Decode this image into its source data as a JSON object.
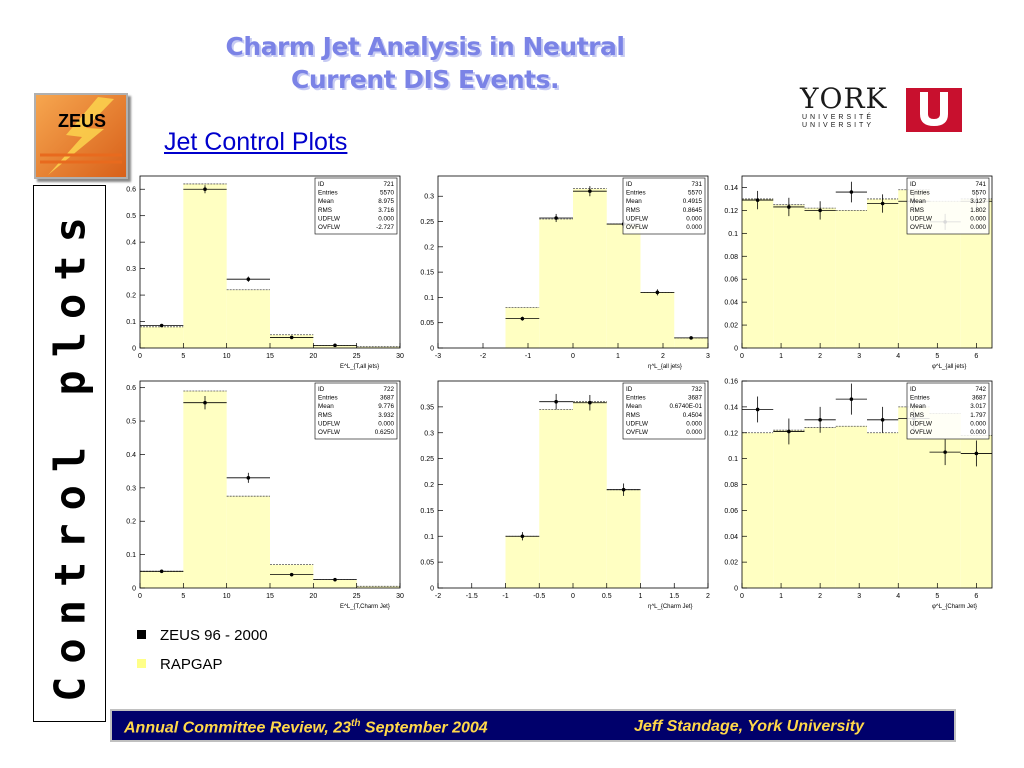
{
  "title_line1": "Charm Jet Analysis in Neutral",
  "title_line2": "Current DIS Events.",
  "subtitle": "Jet Control Plots",
  "logo_zeus": "ZEUS",
  "logo_york": {
    "name": "YORK",
    "line1": "UNIVERSITÉ",
    "line2": "UNIVERSITY"
  },
  "sidebar_text": "Control plots",
  "legend": [
    {
      "label": "ZEUS 96 - 2000",
      "color": "#000000"
    },
    {
      "label": "RAPGAP",
      "color": "#ffff88"
    }
  ],
  "footer": {
    "left_pre": "Annual Committee Review, 23",
    "left_sup": "th",
    "left_post": " September 2004",
    "right": "Jeff Standage, York University"
  },
  "colors": {
    "mc_fill": "#ffffc2",
    "mc_line": "#e8e890",
    "title": "#7b83e6",
    "subtitle": "#0000cc",
    "footer_bg": "#00006b",
    "footer_text": "#ffd84a"
  },
  "chart_data": [
    {
      "type": "bar",
      "xlabel": "E^L_{T,all jets}",
      "xlim": [
        0,
        30
      ],
      "ylim": [
        0,
        0.65
      ],
      "xticks": [
        0,
        5,
        10,
        15,
        20,
        25,
        30
      ],
      "yticks": [
        0,
        0.1,
        0.2,
        0.3,
        0.4,
        0.5,
        0.6
      ],
      "stats": [
        [
          "ID",
          "721"
        ],
        [
          "Entries",
          "5570"
        ],
        [
          "Mean",
          "8.975"
        ],
        [
          "RMS",
          "3.716"
        ],
        [
          "UDFLW",
          "0.000"
        ],
        [
          "OVFLW",
          "-2.727"
        ]
      ],
      "bins": [
        0,
        5,
        10,
        15,
        20,
        25,
        30
      ],
      "mc": [
        0.08,
        0.62,
        0.22,
        0.05,
        0.01,
        0.005
      ],
      "data_x": [
        2.5,
        7.5,
        12.5,
        17.5,
        22.5
      ],
      "data_y": [
        0.085,
        0.6,
        0.26,
        0.04,
        0.01
      ],
      "data_err": [
        0.005,
        0.015,
        0.01,
        0.004,
        0.002
      ]
    },
    {
      "type": "bar",
      "xlabel": "η^L_{all jets}",
      "xlim": [
        -3,
        3
      ],
      "ylim": [
        0,
        0.34
      ],
      "xticks": [
        -3,
        -2,
        -1,
        0,
        1,
        2,
        3
      ],
      "yticks": [
        0,
        0.05,
        0.1,
        0.15,
        0.2,
        0.25,
        0.3
      ],
      "stats": [
        [
          "ID",
          "731"
        ],
        [
          "Entries",
          "5570"
        ],
        [
          "Mean",
          "0.4915"
        ],
        [
          "RMS",
          "0.8645"
        ],
        [
          "UDFLW",
          "0.000"
        ],
        [
          "OVFLW",
          "0.000"
        ]
      ],
      "bins": [
        -1.5,
        -0.75,
        0,
        0.75,
        1.5,
        2.25,
        3
      ],
      "mc": [
        0.08,
        0.255,
        0.315,
        0.245,
        0.11,
        0.02
      ],
      "data_x": [
        -1.125,
        -0.375,
        0.375,
        1.125,
        1.875,
        2.625
      ],
      "data_y": [
        0.058,
        0.257,
        0.31,
        0.245,
        0.11,
        0.02
      ],
      "data_err": [
        0.004,
        0.008,
        0.01,
        0.008,
        0.006,
        0.003
      ]
    },
    {
      "type": "bar",
      "xlabel": "φ^L_{all jets}",
      "xlim": [
        0,
        6.4
      ],
      "ylim": [
        0,
        0.15
      ],
      "xticks": [
        0,
        1,
        2,
        3,
        4,
        5,
        6
      ],
      "yticks": [
        0,
        0.02,
        0.04,
        0.06,
        0.08,
        0.1,
        0.12,
        0.14
      ],
      "stats": [
        [
          "ID",
          "741"
        ],
        [
          "Entries",
          "5570"
        ],
        [
          "Mean",
          "3.127"
        ],
        [
          "RMS",
          "1.802"
        ],
        [
          "UDFLW",
          "0.000"
        ],
        [
          "OVFLW",
          "0.000"
        ]
      ],
      "bins": [
        0,
        0.8,
        1.6,
        2.4,
        3.2,
        4.0,
        4.8,
        5.6,
        6.4
      ],
      "mc": [
        0.13,
        0.125,
        0.122,
        0.12,
        0.13,
        0.138,
        0.128,
        0.13
      ],
      "data_x": [
        0.4,
        1.2,
        2.0,
        2.8,
        3.6,
        4.4,
        5.2,
        6.0
      ],
      "data_y": [
        0.129,
        0.123,
        0.12,
        0.136,
        0.126,
        0.128,
        0.11,
        0.128
      ],
      "data_err": [
        0.008,
        0.008,
        0.008,
        0.009,
        0.008,
        0.008,
        0.007,
        0.008
      ]
    },
    {
      "type": "bar",
      "xlabel": "E^L_{T,Charm Jet}",
      "xlim": [
        0,
        30
      ],
      "ylim": [
        0,
        0.62
      ],
      "xticks": [
        0,
        5,
        10,
        15,
        20,
        25,
        30
      ],
      "yticks": [
        0,
        0.1,
        0.2,
        0.3,
        0.4,
        0.5,
        0.6
      ],
      "stats": [
        [
          "ID",
          "722"
        ],
        [
          "Entries",
          "3687"
        ],
        [
          "Mean",
          "9.776"
        ],
        [
          "RMS",
          "3.932"
        ],
        [
          "UDFLW",
          "0.000"
        ],
        [
          "OVFLW",
          "0.6250"
        ]
      ],
      "bins": [
        0,
        5,
        10,
        15,
        20,
        25,
        30
      ],
      "mc": [
        0.05,
        0.59,
        0.275,
        0.07,
        0.025,
        0.005
      ],
      "data_x": [
        2.5,
        7.5,
        12.5,
        17.5,
        22.5
      ],
      "data_y": [
        0.05,
        0.555,
        0.33,
        0.04,
        0.025
      ],
      "data_err": [
        0.005,
        0.02,
        0.015,
        0.005,
        0.003
      ]
    },
    {
      "type": "bar",
      "xlabel": "η^L_{Charm Jet}",
      "xlim": [
        -2,
        2
      ],
      "ylim": [
        0,
        0.4
      ],
      "xticks": [
        -2,
        -1.5,
        -1,
        -0.5,
        0,
        0.5,
        1,
        1.5,
        2
      ],
      "yticks": [
        0,
        0.05,
        0.1,
        0.15,
        0.2,
        0.25,
        0.3,
        0.35
      ],
      "stats": [
        [
          "ID",
          "732"
        ],
        [
          "Entries",
          "3687"
        ],
        [
          "Mean",
          "0.6740E-01"
        ],
        [
          "RMS",
          "0.4504"
        ],
        [
          "UDFLW",
          "0.000"
        ],
        [
          "OVFLW",
          "0.000"
        ]
      ],
      "bins": [
        -1,
        -0.5,
        0,
        0.5,
        1
      ],
      "mc": [
        0.1,
        0.345,
        0.36,
        0.19
      ],
      "data_x": [
        -0.75,
        -0.25,
        0.25,
        0.75
      ],
      "data_y": [
        0.1,
        0.36,
        0.358,
        0.19
      ],
      "data_err": [
        0.008,
        0.015,
        0.015,
        0.012
      ]
    },
    {
      "type": "bar",
      "xlabel": "φ^L_{Charm Jet}",
      "xlim": [
        0,
        6.4
      ],
      "ylim": [
        0,
        0.16
      ],
      "xticks": [
        0,
        1,
        2,
        3,
        4,
        5,
        6
      ],
      "yticks": [
        0,
        0.02,
        0.04,
        0.06,
        0.08,
        0.1,
        0.12,
        0.14,
        0.16
      ],
      "stats": [
        [
          "ID",
          "742"
        ],
        [
          "Entries",
          "3687"
        ],
        [
          "Mean",
          "3.017"
        ],
        [
          "RMS",
          "1.797"
        ],
        [
          "UDFLW",
          "0.000"
        ],
        [
          "OVFLW",
          "0.000"
        ]
      ],
      "bins": [
        0,
        0.8,
        1.6,
        2.4,
        3.2,
        4.0,
        4.8,
        5.6,
        6.4
      ],
      "mc": [
        0.12,
        0.122,
        0.124,
        0.125,
        0.12,
        0.14,
        0.135,
        0.118
      ],
      "data_x": [
        0.4,
        1.2,
        2.0,
        2.8,
        3.6,
        4.4,
        5.2,
        6.0
      ],
      "data_y": [
        0.138,
        0.121,
        0.13,
        0.146,
        0.13,
        0.131,
        0.105,
        0.104
      ],
      "data_err": [
        0.01,
        0.01,
        0.01,
        0.012,
        0.01,
        0.01,
        0.01,
        0.01
      ]
    }
  ]
}
